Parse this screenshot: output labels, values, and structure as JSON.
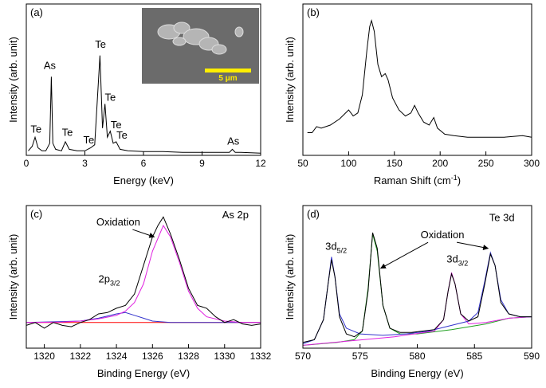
{
  "chart_data": [
    {
      "type": "line",
      "panel_label": "(a)",
      "xlabel": "Energy (keV)",
      "ylabel": "Intensity (arb. unit)",
      "xlim": [
        0,
        12
      ],
      "ylim": [
        0,
        100
      ],
      "xticks": [
        0,
        3,
        6,
        9,
        12
      ],
      "inset_scale_label": "5 μm",
      "series": [
        {
          "color": "#000000",
          "x": [
            0.1,
            0.3,
            0.45,
            0.6,
            0.8,
            1.0,
            1.2,
            1.28,
            1.36,
            1.5,
            1.8,
            2.0,
            2.2,
            2.6,
            3.0,
            3.3,
            3.5,
            3.77,
            3.9,
            4.03,
            4.15,
            4.3,
            4.45,
            4.6,
            4.8,
            5.2,
            6,
            7,
            8,
            9,
            10,
            10.4,
            10.55,
            10.7,
            11,
            12
          ],
          "values": [
            3,
            6,
            12,
            5,
            3,
            3,
            8,
            52,
            8,
            4,
            3,
            9,
            4,
            3,
            3,
            5,
            7,
            66,
            18,
            34,
            12,
            16,
            8,
            9,
            4,
            3,
            2.5,
            2.5,
            2,
            2,
            2,
            2,
            4,
            2,
            2,
            1.5
          ]
        }
      ],
      "annotations": [
        {
          "text": "Te",
          "x": 0.5,
          "y": 15
        },
        {
          "text": "As",
          "x": 1.2,
          "y": 57
        },
        {
          "text": "Te",
          "x": 2.1,
          "y": 13
        },
        {
          "text": "Te",
          "x": 3.2,
          "y": 8
        },
        {
          "text": "Te",
          "x": 3.8,
          "y": 71
        },
        {
          "text": "Te",
          "x": 4.3,
          "y": 36
        },
        {
          "text": "Te",
          "x": 4.6,
          "y": 18
        },
        {
          "text": "Te",
          "x": 4.9,
          "y": 11
        },
        {
          "text": "As",
          "x": 10.6,
          "y": 7
        }
      ]
    },
    {
      "type": "line",
      "panel_label": "(b)",
      "xlabel": "Raman Shift (cm",
      "xlabel_sup": "-1",
      "xlabel_end": ")",
      "ylabel": "Intensity (arb. unit)",
      "xlim": [
        50,
        300
      ],
      "ylim": [
        0,
        100
      ],
      "xticks": [
        50,
        100,
        150,
        200,
        250,
        300
      ],
      "series": [
        {
          "color": "#000000",
          "x": [
            55,
            60,
            65,
            70,
            80,
            90,
            100,
            105,
            110,
            115,
            120,
            123,
            125,
            128,
            132,
            136,
            140,
            143,
            148,
            155,
            162,
            168,
            172,
            176,
            182,
            188,
            193,
            197,
            205,
            215,
            230,
            250,
            270,
            290,
            300
          ],
          "values": [
            15,
            15,
            19,
            18,
            20,
            24,
            30,
            26,
            28,
            40,
            70,
            85,
            89,
            82,
            60,
            52,
            54,
            50,
            38,
            30,
            26,
            28,
            33,
            28,
            22,
            20,
            25,
            18,
            14,
            13,
            12,
            12,
            12,
            13,
            12
          ]
        }
      ],
      "annotations": []
    },
    {
      "type": "line",
      "panel_label": "(c)",
      "xlabel": "Binding Energy (eV)",
      "ylabel": "Intensity (arb. unit)",
      "xlim": [
        1319,
        1332
      ],
      "ylim": [
        0,
        100
      ],
      "xticks": [
        1320,
        1322,
        1324,
        1326,
        1328,
        1330,
        1332
      ],
      "series": [
        {
          "color": "#ff0000",
          "x": [
            1319,
            1332
          ],
          "values": [
            18,
            18
          ]
        },
        {
          "color": "#3333cc",
          "x": [
            1319,
            1322,
            1323,
            1324,
            1324.5,
            1325,
            1325.5,
            1326,
            1327,
            1332
          ],
          "values": [
            18,
            19,
            21,
            24,
            25,
            23,
            21,
            19,
            18,
            18
          ]
        },
        {
          "color": "#e020e0",
          "x": [
            1319,
            1321,
            1322,
            1323,
            1324,
            1324.5,
            1325,
            1325.5,
            1326,
            1326.6,
            1327,
            1327.5,
            1328,
            1328.5,
            1329,
            1330,
            1331,
            1332
          ],
          "values": [
            18,
            18.3,
            19,
            20.5,
            23,
            26,
            32,
            45,
            68,
            86,
            78,
            60,
            40,
            28,
            22,
            19,
            18,
            18
          ]
        },
        {
          "color": "#000000",
          "x": [
            1319,
            1319.5,
            1320,
            1320.5,
            1321,
            1321.5,
            1322,
            1322.5,
            1323,
            1323.5,
            1324,
            1324.5,
            1325,
            1325.5,
            1326,
            1326.3,
            1326.6,
            1327,
            1327.5,
            1328,
            1328.5,
            1329,
            1329.5,
            1330,
            1330.5,
            1331,
            1331.5,
            1332
          ],
          "values": [
            16,
            18,
            14,
            18,
            16,
            15,
            18,
            20,
            24,
            25,
            28,
            30,
            38,
            58,
            78,
            86,
            92,
            80,
            62,
            42,
            30,
            28,
            22,
            18,
            20,
            17,
            16,
            17
          ]
        }
      ],
      "annotations": [
        {
          "text": "Oxidation",
          "x": 1324.1,
          "y": 86,
          "arrow_to": [
            [
              1326.1,
              78
            ]
          ]
        },
        {
          "text": "As 2p",
          "x": 1330.6,
          "y": 91
        },
        {
          "text": "2p",
          "sub": "3/2",
          "x": 1323.6,
          "y": 46
        }
      ]
    },
    {
      "type": "line",
      "panel_label": "(d)",
      "xlabel": "Binding Energy (eV)",
      "ylabel": "Intensity (arb. unit)",
      "xlim": [
        570,
        590
      ],
      "ylim": [
        0,
        100
      ],
      "xticks": [
        570,
        575,
        580,
        585,
        590
      ],
      "series": [
        {
          "color": "#20a020",
          "x": [
            570,
            573,
            574.5,
            575.2,
            575.7,
            576.1,
            576.5,
            577,
            577.6,
            578.5,
            580,
            583,
            586,
            588,
            590
          ],
          "values": [
            2,
            4,
            6,
            12,
            42,
            80,
            68,
            30,
            14,
            10,
            10,
            13,
            17,
            21,
            22
          ]
        },
        {
          "color": "#e020e0",
          "x": [
            570,
            578,
            581.5,
            582.3,
            582.7,
            583,
            583.3,
            583.8,
            584.5,
            586,
            588,
            590
          ],
          "values": [
            2,
            8,
            12,
            20,
            40,
            53,
            45,
            24,
            17,
            18,
            21,
            22
          ]
        },
        {
          "color": "#3333cc",
          "x": [
            570,
            571,
            571.8,
            572.2,
            572.5,
            572.8,
            573.2,
            573.8,
            575,
            577,
            579,
            581,
            583,
            584.5,
            585.3,
            585.9,
            586.4,
            586.8,
            587.3,
            588,
            589,
            590
          ],
          "values": [
            3,
            6,
            20,
            45,
            64,
            50,
            24,
            14,
            10,
            9,
            10,
            12,
            16,
            19,
            25,
            47,
            67,
            58,
            34,
            24,
            22,
            22
          ]
        },
        {
          "color": "#000000",
          "x": [
            570,
            571,
            571.8,
            572.2,
            572.5,
            572.8,
            573.2,
            573.8,
            574.5,
            575.2,
            575.7,
            576.1,
            576.5,
            577,
            577.6,
            578.5,
            579.5,
            580.5,
            581.5,
            582.3,
            582.7,
            583,
            583.3,
            583.8,
            584.5,
            585.3,
            585.9,
            586.4,
            586.8,
            587.3,
            588,
            589,
            590
          ],
          "values": [
            4,
            6,
            20,
            45,
            62,
            50,
            22,
            10,
            8,
            12,
            40,
            81,
            70,
            30,
            14,
            11,
            11,
            12,
            13,
            20,
            40,
            52,
            45,
            24,
            19,
            22,
            45,
            66,
            58,
            32,
            24,
            22,
            22
          ]
        }
      ],
      "annotations": [
        {
          "text": "3d",
          "sub": "5/2",
          "x": 572.9,
          "y": 69
        },
        {
          "text": "3d",
          "sub": "3/2",
          "x": 583.5,
          "y": 60
        },
        {
          "text": "Oxidation",
          "x": 582.2,
          "y": 77,
          "arrow_to": [
            [
              576.8,
              56
            ],
            [
              586.2,
              70
            ]
          ]
        },
        {
          "text": "Te 3d",
          "x": 587.4,
          "y": 89
        }
      ]
    }
  ]
}
